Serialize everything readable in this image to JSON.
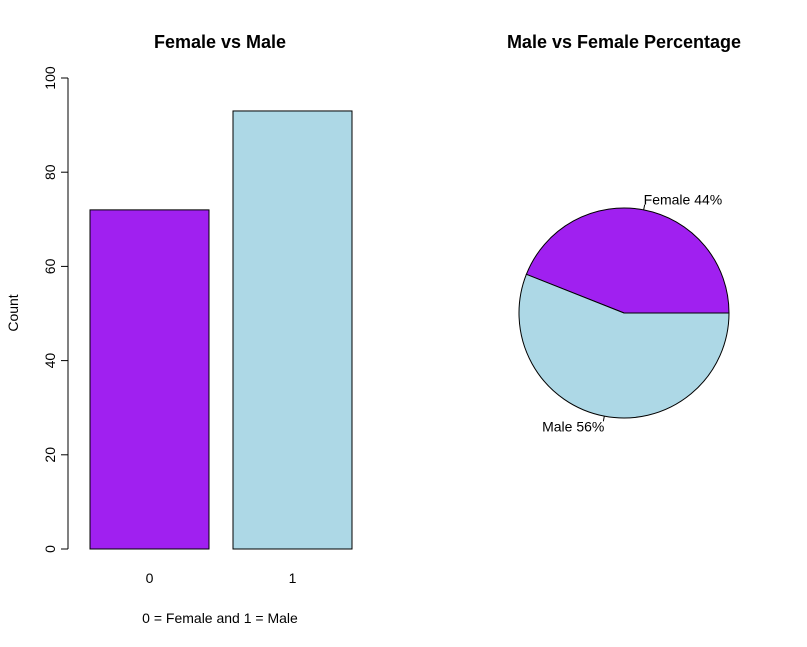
{
  "chart_data": [
    {
      "type": "bar",
      "title": "Female vs Male",
      "xlabel": "0 = Female and 1 = Male",
      "ylabel": "Count",
      "categories": [
        "0",
        "1"
      ],
      "values": [
        72,
        93
      ],
      "ylim": [
        0,
        100
      ],
      "yticks": [
        0,
        20,
        40,
        60,
        80,
        100
      ],
      "colors": [
        "#a020f0",
        "#add8e6"
      ],
      "grid": false
    },
    {
      "type": "pie",
      "title": "Male vs Female Percentage",
      "labels": [
        "Female 44%",
        "Male 56%"
      ],
      "values": [
        44,
        56
      ],
      "colors": [
        "#a020f0",
        "#add8e6"
      ]
    }
  ]
}
